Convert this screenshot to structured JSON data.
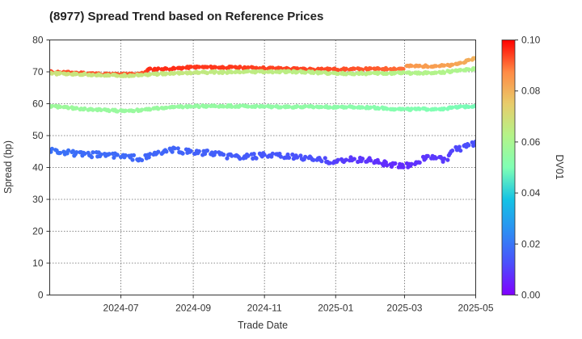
{
  "chart_data": {
    "type": "scatter",
    "title": "(8977)   Spread Trend based on Reference Prices",
    "xlabel": "Trade Date",
    "ylabel": "Spread (bp)",
    "colorbar_label": "DV01",
    "xlim": [
      "2024-05-01",
      "2025-05-01"
    ],
    "ylim": [
      0,
      80
    ],
    "xticks": [
      "2024-07",
      "2024-09",
      "2024-11",
      "2025-01",
      "2025-03",
      "2025-05"
    ],
    "yticks": [
      0,
      10,
      20,
      30,
      40,
      50,
      60,
      70,
      80
    ],
    "colorbar_ticks": [
      "0.00",
      "0.02",
      "0.04",
      "0.06",
      "0.08",
      "0.10"
    ],
    "colorbar_range": [
      0.0,
      0.1
    ],
    "colormap": "rainbow",
    "grid": true,
    "series": [
      {
        "points": [
          [
            "2024-05-01",
            70.0,
            0.094
          ],
          [
            "2024-05-15",
            69.8,
            0.093
          ],
          [
            "2024-06-01",
            69.6,
            0.093
          ],
          [
            "2024-06-15",
            69.3,
            0.092
          ],
          [
            "2024-07-01",
            69.2,
            0.092
          ],
          [
            "2024-07-20",
            69.5,
            0.092
          ],
          [
            "2024-07-25",
            70.8,
            0.096
          ],
          [
            "2024-08-15",
            71.0,
            0.096
          ],
          [
            "2024-09-01",
            71.5,
            0.095
          ],
          [
            "2024-10-01",
            71.4,
            0.095
          ],
          [
            "2024-11-01",
            71.2,
            0.094
          ],
          [
            "2024-12-01",
            70.9,
            0.094
          ],
          [
            "2025-01-05",
            70.8,
            0.093
          ],
          [
            "2025-02-01",
            70.9,
            0.092
          ],
          [
            "2025-02-28",
            71.0,
            0.09
          ],
          [
            "2025-03-01",
            71.8,
            0.085
          ],
          [
            "2025-03-20",
            71.8,
            0.084
          ],
          [
            "2025-04-10",
            72.0,
            0.083
          ],
          [
            "2025-04-25",
            73.5,
            0.081
          ],
          [
            "2025-05-01",
            74.5,
            0.08
          ]
        ]
      },
      {
        "points": [
          [
            "2024-05-01",
            69.5,
            0.068
          ],
          [
            "2024-06-01",
            69.2,
            0.067
          ],
          [
            "2024-07-01",
            68.8,
            0.067
          ],
          [
            "2024-08-01",
            69.3,
            0.066
          ],
          [
            "2024-09-01",
            69.8,
            0.066
          ],
          [
            "2024-10-01",
            69.9,
            0.065
          ],
          [
            "2024-11-01",
            70.0,
            0.065
          ],
          [
            "2024-12-01",
            70.0,
            0.064
          ],
          [
            "2025-01-01",
            69.5,
            0.064
          ],
          [
            "2025-02-01",
            69.5,
            0.063
          ],
          [
            "2025-03-01",
            69.6,
            0.062
          ],
          [
            "2025-04-01",
            69.8,
            0.062
          ],
          [
            "2025-05-01",
            71.0,
            0.06
          ]
        ]
      },
      {
        "points": [
          [
            "2024-05-01",
            59.3,
            0.057
          ],
          [
            "2024-05-15",
            58.8,
            0.057
          ],
          [
            "2024-06-01",
            58.3,
            0.056
          ],
          [
            "2024-07-01",
            57.8,
            0.056
          ],
          [
            "2024-07-20",
            58.0,
            0.056
          ],
          [
            "2024-08-01",
            58.6,
            0.056
          ],
          [
            "2024-09-01",
            59.2,
            0.055
          ],
          [
            "2024-10-01",
            59.3,
            0.055
          ],
          [
            "2024-11-01",
            59.1,
            0.054
          ],
          [
            "2024-12-01",
            59.0,
            0.054
          ],
          [
            "2025-01-01",
            59.0,
            0.053
          ],
          [
            "2025-02-01",
            58.8,
            0.052
          ],
          [
            "2025-03-01",
            58.2,
            0.051
          ],
          [
            "2025-04-01",
            58.4,
            0.05
          ],
          [
            "2025-05-01",
            59.4,
            0.049
          ]
        ]
      },
      {
        "points": [
          [
            "2024-05-01",
            45.5,
            0.019
          ],
          [
            "2024-05-20",
            44.5,
            0.019
          ],
          [
            "2024-06-01",
            43.8,
            0.018
          ],
          [
            "2024-06-15",
            44.2,
            0.018
          ],
          [
            "2024-07-01",
            43.5,
            0.018
          ],
          [
            "2024-07-20",
            42.8,
            0.017
          ],
          [
            "2024-08-01",
            44.5,
            0.017
          ],
          [
            "2024-08-15",
            45.5,
            0.017
          ],
          [
            "2024-09-01",
            44.8,
            0.016
          ],
          [
            "2024-09-15",
            44.5,
            0.016
          ],
          [
            "2024-10-01",
            43.5,
            0.015
          ],
          [
            "2024-10-15",
            43.2,
            0.015
          ],
          [
            "2024-11-01",
            43.8,
            0.014
          ],
          [
            "2024-11-15",
            43.5,
            0.014
          ],
          [
            "2024-12-01",
            43.2,
            0.013
          ],
          [
            "2024-12-15",
            42.5,
            0.013
          ],
          [
            "2025-01-01",
            41.8,
            0.01
          ],
          [
            "2025-01-15",
            42.5,
            0.009
          ],
          [
            "2025-02-01",
            42.3,
            0.008
          ],
          [
            "2025-02-15",
            41.0,
            0.007
          ],
          [
            "2025-03-01",
            40.2,
            0.007
          ],
          [
            "2025-03-15",
            42.5,
            0.008
          ],
          [
            "2025-03-25",
            43.5,
            0.009
          ],
          [
            "2025-04-05",
            42.0,
            0.009
          ],
          [
            "2025-04-12",
            45.5,
            0.011
          ],
          [
            "2025-04-20",
            46.0,
            0.012
          ],
          [
            "2025-05-01",
            47.5,
            0.013
          ]
        ]
      }
    ]
  }
}
